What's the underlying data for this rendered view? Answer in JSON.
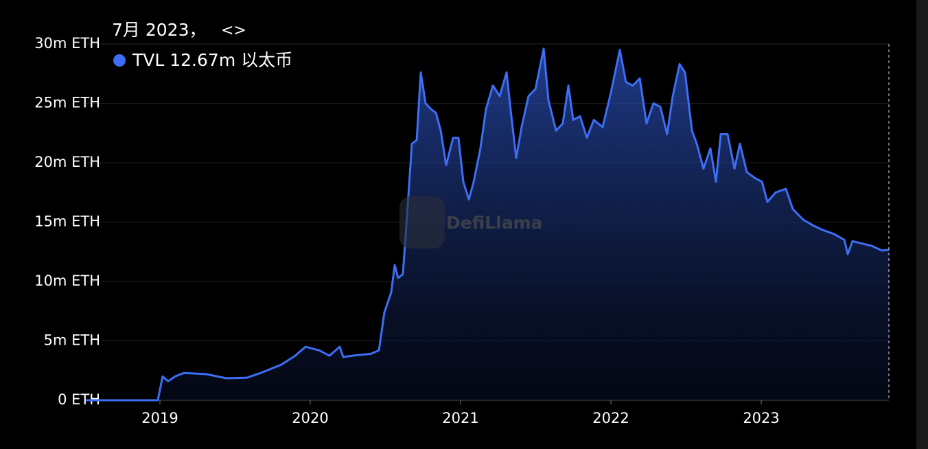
{
  "chart_data": {
    "type": "area",
    "tooltip_date": "7月 2023，",
    "tooltip_nav": "<>",
    "tooltip_value": "TVL 12.67m 以太币",
    "watermark": "DefiLlama",
    "color": "#3d6ef5",
    "grid": true,
    "ylim": [
      0,
      30
    ],
    "yticks": [
      {
        "value": 0,
        "label": "0 ETH"
      },
      {
        "value": 5,
        "label": "5m ETH"
      },
      {
        "value": 10,
        "label": "10m ETH"
      },
      {
        "value": 15,
        "label": "15m ETH"
      },
      {
        "value": 20,
        "label": "20m ETH"
      },
      {
        "value": 25,
        "label": "25m ETH"
      },
      {
        "value": 30,
        "label": "30m ETH"
      }
    ],
    "xlim": [
      2018.507,
      2023.849
    ],
    "xticks": [
      2019,
      2020,
      2021,
      2022,
      2023
    ],
    "x": [
      2018.507,
      2018.986,
      2019.018,
      2019.055,
      2019.1,
      2019.16,
      2019.306,
      2019.443,
      2019.58,
      2019.671,
      2019.808,
      2019.9,
      2019.968,
      2020.059,
      2020.128,
      2020.196,
      2020.219,
      2020.311,
      2020.402,
      2020.457,
      2020.493,
      2020.539,
      2020.562,
      2020.584,
      2020.616,
      2020.639,
      2020.676,
      2020.708,
      2020.735,
      2020.767,
      2020.804,
      2020.836,
      2020.868,
      2020.904,
      2020.95,
      2020.986,
      2021.018,
      2021.055,
      2021.087,
      2021.132,
      2021.169,
      2021.215,
      2021.26,
      2021.306,
      2021.338,
      2021.37,
      2021.406,
      2021.452,
      2021.498,
      2021.553,
      2021.584,
      2021.635,
      2021.68,
      2021.717,
      2021.749,
      2021.795,
      2021.84,
      2021.886,
      2021.945,
      2022.0,
      2022.059,
      2022.1,
      2022.146,
      2022.192,
      2022.237,
      2022.283,
      2022.329,
      2022.374,
      2022.411,
      2022.457,
      2022.493,
      2022.539,
      2022.571,
      2022.616,
      2022.662,
      2022.699,
      2022.731,
      2022.776,
      2022.822,
      2022.858,
      2022.904,
      2022.959,
      2023.005,
      2023.041,
      2023.096,
      2023.164,
      2023.21,
      2023.279,
      2023.347,
      2023.416,
      2023.484,
      2023.553,
      2023.575,
      2023.607,
      2023.667,
      2023.735,
      2023.804,
      2023.849
    ],
    "values": [
      0,
      0,
      2.0,
      1.6,
      2.0,
      2.3,
      2.2,
      1.85,
      1.9,
      2.3,
      3.0,
      3.75,
      4.5,
      4.2,
      3.75,
      4.5,
      3.65,
      3.8,
      3.9,
      4.2,
      7.4,
      9.1,
      11.4,
      10.3,
      10.6,
      14.6,
      21.6,
      21.9,
      27.6,
      25.0,
      24.5,
      24.2,
      22.7,
      19.8,
      22.1,
      22.1,
      18.4,
      16.9,
      18.4,
      21.2,
      24.5,
      26.5,
      25.6,
      27.6,
      23.9,
      20.4,
      23.0,
      25.6,
      26.2,
      29.6,
      25.3,
      22.7,
      23.3,
      26.5,
      23.6,
      23.9,
      22.1,
      23.6,
      23.0,
      25.9,
      29.5,
      26.8,
      26.5,
      27.1,
      23.3,
      25.0,
      24.7,
      22.4,
      25.6,
      28.3,
      27.6,
      22.7,
      21.6,
      19.5,
      21.2,
      18.4,
      22.4,
      22.4,
      19.5,
      21.6,
      19.2,
      18.7,
      18.4,
      16.7,
      17.5,
      17.8,
      16.1,
      15.2,
      14.7,
      14.3,
      14.0,
      13.5,
      12.3,
      13.4,
      13.2,
      13.0,
      12.6,
      12.67
    ]
  }
}
